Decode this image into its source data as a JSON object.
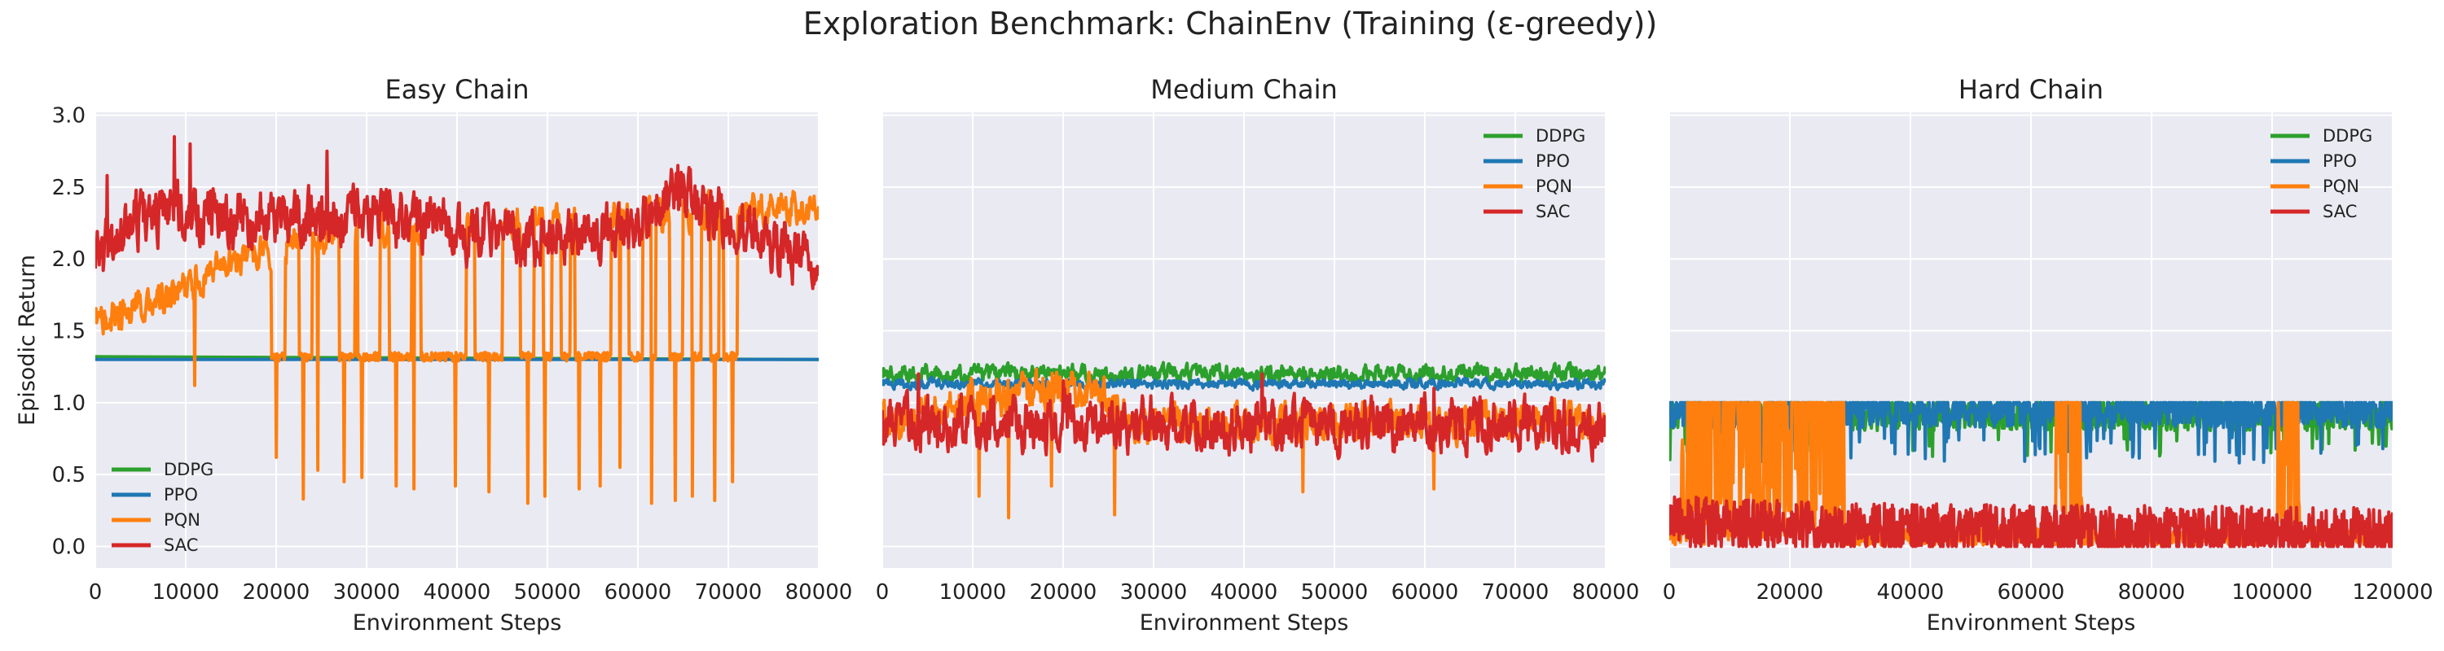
{
  "figure": {
    "title": "Exploration Benchmark: ChainEnv (Training (ε-greedy))"
  },
  "colors": {
    "DDPG": "#2ca02c",
    "PPO": "#1f77b4",
    "PQN": "#ff7f0e",
    "SAC": "#d62728",
    "plot_background": "#eaeaf2",
    "grid": "#ffffff"
  },
  "chart_data": [
    {
      "type": "line",
      "title": "Easy Chain",
      "xlabel": "Environment Steps",
      "ylabel": "Episodic Return",
      "xlim": [
        0,
        80000
      ],
      "ylim": [
        -0.15,
        3.02
      ],
      "xticks": [
        0,
        10000,
        20000,
        30000,
        40000,
        50000,
        60000,
        70000,
        80000
      ],
      "xtick_labels": [
        "0",
        "10000",
        "20000",
        "30000",
        "40000",
        "50000",
        "60000",
        "70000",
        "80000"
      ],
      "yticks": [
        0.0,
        0.5,
        1.0,
        1.5,
        2.0,
        2.5,
        3.0
      ],
      "ytick_labels": [
        "0.0",
        "0.5",
        "1.0",
        "1.5",
        "2.0",
        "2.5",
        "3.0"
      ],
      "grid": true,
      "legend": {
        "placement": "lower-left",
        "entries": [
          "DDPG",
          "PPO",
          "PQN",
          "SAC"
        ]
      },
      "series": [
        {
          "name": "DDPG",
          "color": "#2ca02c",
          "mode": "const",
          "base": 1.3,
          "noise": 0,
          "endpoints": [
            [
              0,
              1.32
            ],
            [
              80000,
              1.3
            ]
          ]
        },
        {
          "name": "PPO",
          "color": "#1f77b4",
          "mode": "const",
          "base": 1.3,
          "noise": 0,
          "endpoints": [
            [
              0,
              1.3
            ],
            [
              80000,
              1.3
            ]
          ]
        },
        {
          "name": "PQN",
          "color": "#ff7f0e",
          "mode": "switch",
          "low": 1.32,
          "lowNoise": 0.03,
          "high": [
            [
              0,
              1.55
            ],
            [
              9000,
              1.75
            ],
            [
              15000,
              2.0
            ],
            [
              30000,
              2.2
            ],
            [
              60000,
              2.3
            ],
            [
              80000,
              2.37
            ]
          ],
          "highNoise": 0.09,
          "intervals": [
            [
              0,
              19500
            ],
            [
              21000,
              22500
            ],
            [
              24000,
              27000
            ],
            [
              28700,
              29000
            ],
            [
              31500,
              32500
            ],
            [
              35000,
              36000
            ],
            [
              41000,
              42000
            ],
            [
              45000,
              47000
            ],
            [
              48500,
              49500
            ],
            [
              50500,
              51500
            ],
            [
              52500,
              53000
            ],
            [
              57000,
              59000
            ],
            [
              60500,
              61500
            ],
            [
              62000,
              63500
            ],
            [
              65000,
              66000
            ],
            [
              67000,
              68000
            ],
            [
              69000,
              69500
            ],
            [
              71000,
              80000
            ]
          ],
          "dips": [
            [
              11000,
              1.12
            ],
            [
              20000,
              0.62
            ],
            [
              23000,
              0.33
            ],
            [
              24600,
              0.53
            ],
            [
              27500,
              0.45
            ],
            [
              29500,
              0.48
            ],
            [
              33300,
              0.42
            ],
            [
              35200,
              0.4
            ],
            [
              39800,
              0.42
            ],
            [
              43500,
              0.38
            ],
            [
              47800,
              0.3
            ],
            [
              49700,
              0.35
            ],
            [
              53500,
              0.4
            ],
            [
              55800,
              0.42
            ],
            [
              58000,
              0.55
            ],
            [
              61500,
              0.3
            ],
            [
              64100,
              0.32
            ],
            [
              66000,
              0.35
            ],
            [
              68500,
              0.32
            ],
            [
              70500,
              0.45
            ]
          ]
        },
        {
          "name": "SAC",
          "color": "#d62728",
          "mode": "walk",
          "base": [
            [
              0,
              2.0
            ],
            [
              5000,
              2.3
            ],
            [
              10000,
              2.35
            ],
            [
              20000,
              2.25
            ],
            [
              30000,
              2.3
            ],
            [
              40000,
              2.2
            ],
            [
              50000,
              2.15
            ],
            [
              60000,
              2.2
            ],
            [
              64000,
              2.5
            ],
            [
              70000,
              2.25
            ],
            [
              80000,
              1.95
            ]
          ],
          "noise": 0.15,
          "peaks": [
            [
              1300,
              2.58
            ],
            [
              8700,
              2.85
            ],
            [
              10500,
              2.8
            ],
            [
              25600,
              2.75
            ],
            [
              64400,
              2.65
            ]
          ]
        }
      ]
    },
    {
      "type": "line",
      "title": "Medium Chain",
      "xlabel": "Environment Steps",
      "xlim": [
        0,
        80000
      ],
      "ylim": [
        -0.15,
        3.02
      ],
      "xticks": [
        0,
        10000,
        20000,
        30000,
        40000,
        50000,
        60000,
        70000,
        80000
      ],
      "xtick_labels": [
        "0",
        "10000",
        "20000",
        "30000",
        "40000",
        "50000",
        "60000",
        "70000",
        "80000"
      ],
      "yticks": [
        0.0,
        0.5,
        1.0,
        1.5,
        2.0,
        2.5,
        3.0
      ],
      "grid": true,
      "legend": {
        "placement": "upper-right",
        "entries": [
          "DDPG",
          "PPO",
          "PQN",
          "SAC"
        ]
      },
      "series": [
        {
          "name": "DDPG",
          "color": "#2ca02c",
          "mode": "walk",
          "base": [
            [
              0,
              1.2
            ],
            [
              80000,
              1.2
            ]
          ],
          "noise": 0.045
        },
        {
          "name": "PPO",
          "color": "#1f77b4",
          "mode": "walk",
          "base": [
            [
              0,
              1.13
            ],
            [
              80000,
              1.13
            ]
          ],
          "noise": 0.025
        },
        {
          "name": "PQN",
          "color": "#ff7f0e",
          "mode": "walk",
          "base": [
            [
              0,
              0.85
            ],
            [
              10000,
              1.0
            ],
            [
              18000,
              1.1
            ],
            [
              24000,
              1.05
            ],
            [
              27000,
              0.85
            ],
            [
              40000,
              0.85
            ],
            [
              80000,
              0.88
            ]
          ],
          "noise": 0.1,
          "dips": [
            [
              10700,
              0.35
            ],
            [
              14000,
              0.2
            ],
            [
              18700,
              0.42
            ],
            [
              25700,
              0.22
            ],
            [
              46500,
              0.38
            ],
            [
              61000,
              0.4
            ]
          ]
        },
        {
          "name": "SAC",
          "color": "#d62728",
          "mode": "walk",
          "base": [
            [
              0,
              0.85
            ],
            [
              80000,
              0.85
            ]
          ],
          "noise": 0.14,
          "peaks": [
            [
              4000,
              1.2
            ],
            [
              20000,
              1.15
            ],
            [
              42000,
              1.2
            ],
            [
              61000,
              1.1
            ]
          ]
        }
      ]
    },
    {
      "type": "line",
      "title": "Hard Chain",
      "xlabel": "Environment Steps",
      "xlim": [
        0,
        120000
      ],
      "ylim": [
        -0.15,
        3.02
      ],
      "xticks": [
        0,
        20000,
        40000,
        60000,
        80000,
        100000,
        120000
      ],
      "xtick_labels": [
        "0",
        "20000",
        "40000",
        "60000",
        "80000",
        "100000",
        "120000"
      ],
      "yticks": [
        0.0,
        0.5,
        1.0,
        1.5,
        2.0,
        2.5,
        3.0
      ],
      "grid": true,
      "legend": {
        "placement": "upper-right",
        "entries": [
          "DDPG",
          "PPO",
          "PQN",
          "SAC"
        ]
      },
      "series": [
        {
          "name": "DDPG",
          "color": "#2ca02c",
          "mode": "ceiling",
          "top": 1.0,
          "base": 0.85,
          "noise": 0.1
        },
        {
          "name": "PPO",
          "color": "#1f77b4",
          "mode": "ceiling",
          "top": 1.0,
          "base": 0.88,
          "noise": 0.12
        },
        {
          "name": "PQN",
          "color": "#ff7f0e",
          "mode": "bursts",
          "active": [
            [
              2000,
              29000
            ],
            [
              64000,
              68500
            ],
            [
              101000,
              104500
            ]
          ],
          "base": 0.08,
          "noise": 0.06
        },
        {
          "name": "SAC",
          "color": "#d62728",
          "mode": "floor",
          "floor": 0,
          "base": [
            [
              0,
              0.2
            ],
            [
              30000,
              0.15
            ],
            [
              120000,
              0.12
            ]
          ],
          "noise": 0.14
        }
      ]
    }
  ]
}
